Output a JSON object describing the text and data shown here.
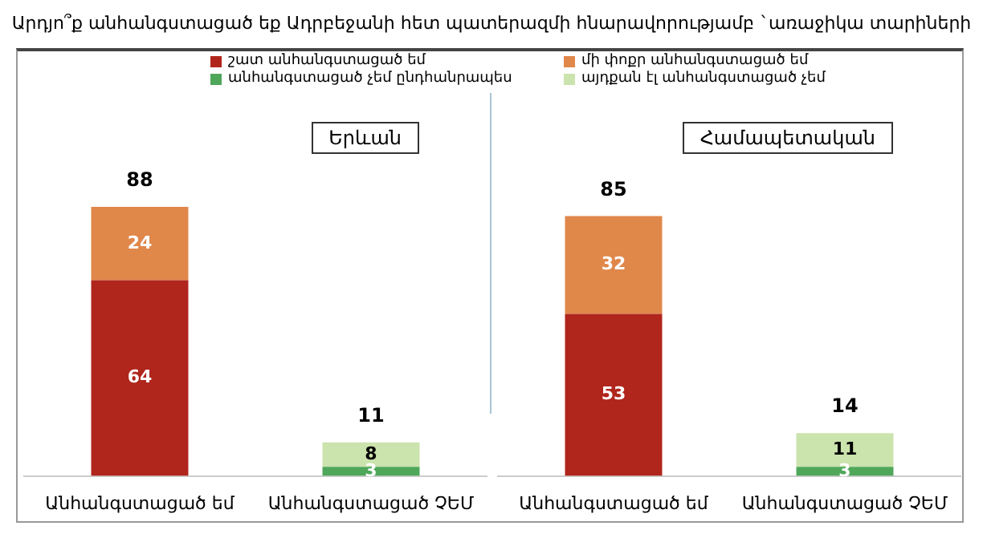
{
  "chart_data": [
    {
      "type": "bar",
      "title": "Արդյո՞ք անհանգստացած եք Ադրբեջանի հետ պատերազմի հնարավորությամբ `առաջիկա տարիների",
      "legend": "top",
      "stacked": true,
      "data_labels": true,
      "grid": false,
      "tick_labels": "x",
      "categories": [
        "Անհանգստացած եմ",
        "Անհանգստացած ՉԵՄ"
      ],
      "annotations": [
        "Երևան"
      ],
      "totals": [
        "88",
        "11"
      ],
      "series": [
        {
          "name": "շատ անհանգստացած եմ",
          "color": "#b0251c",
          "values": [
            64,
            null
          ]
        },
        {
          "name": "մի փոքր անհանգստացած եմ",
          "color": "#e0874a",
          "values": [
            24,
            null
          ]
        },
        {
          "name": "անհանգստացած չեմ ընդհանրապես",
          "color": "#4fa75a",
          "values": [
            null,
            3
          ]
        },
        {
          "name": "այդքան էլ անհանգստացած չեմ",
          "color": "#cbe3ad",
          "values": [
            null,
            8
          ]
        }
      ]
    },
    {
      "type": "bar",
      "stacked": true,
      "data_labels": true,
      "grid": false,
      "tick_labels": "x",
      "categories": [
        "Անհանգստացած եմ",
        "Անհանգստացած ՉԵՄ"
      ],
      "annotations": [
        "Համապետական"
      ],
      "totals": [
        "85",
        "14"
      ],
      "series": [
        {
          "color": "#b0251c",
          "values": [
            53,
            null
          ]
        },
        {
          "color": "#e0874a",
          "values": [
            32,
            null
          ]
        },
        {
          "color": "#4fa75a",
          "values": [
            null,
            3
          ]
        },
        {
          "color": "#cbe3ad",
          "values": [
            null,
            11
          ]
        }
      ]
    }
  ]
}
